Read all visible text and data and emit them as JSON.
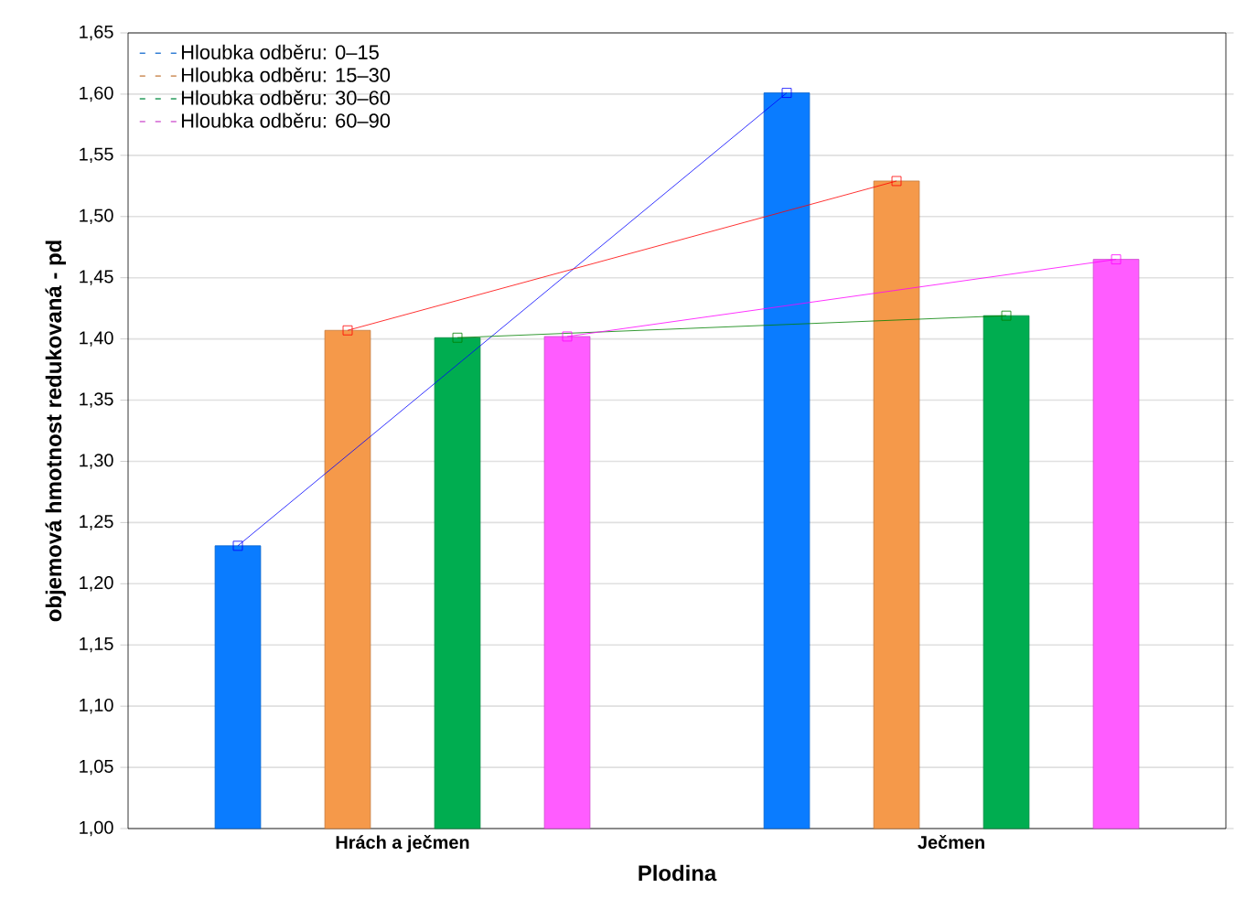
{
  "chart_data": {
    "type": "bar",
    "xlabel": "Plodina",
    "ylabel": "objemová hmotnost redukovaná - pd",
    "categories": [
      "Hrách a ječmen",
      "Ječmen"
    ],
    "series": [
      {
        "name": "Hloubka odběru: 0–15",
        "color": "#0a7cff",
        "values": [
          1.231,
          1.601
        ]
      },
      {
        "name": "Hloubka odběru: 15–30",
        "color": "#f5994a",
        "values": [
          1.407,
          1.529
        ]
      },
      {
        "name": "Hloubka odběru: 30–60",
        "color": "#00ad50",
        "values": [
          1.401,
          1.419
        ]
      },
      {
        "name": "Hloubka odběru: 60–90",
        "color": "#ff5cff",
        "values": [
          1.402,
          1.465
        ]
      },
      {
        "type": "line",
        "marker": "square",
        "color": "#0000ff",
        "values": [
          1.231,
          1.601
        ]
      },
      {
        "type": "line",
        "marker": "square",
        "color": "#ff0000",
        "values": [
          1.407,
          1.529
        ]
      },
      {
        "type": "line",
        "marker": "square",
        "color": "#008000",
        "values": [
          1.401,
          1.419
        ]
      },
      {
        "type": "line",
        "marker": "square",
        "color": "#ff00ff",
        "values": [
          1.402,
          1.465
        ]
      }
    ],
    "ylim": [
      1.0,
      1.65
    ],
    "yticks": [
      {
        "value": 1.0,
        "label": "1,00"
      },
      {
        "value": 1.05,
        "label": "1,05"
      },
      {
        "value": 1.1,
        "label": "1,10"
      },
      {
        "value": 1.15,
        "label": "1,15"
      },
      {
        "value": 1.2,
        "label": "1,20"
      },
      {
        "value": 1.25,
        "label": "1,25"
      },
      {
        "value": 1.3,
        "label": "1,30"
      },
      {
        "value": 1.35,
        "label": "1,35"
      },
      {
        "value": 1.4,
        "label": "1,40"
      },
      {
        "value": 1.45,
        "label": "1,45"
      },
      {
        "value": 1.5,
        "label": "1,50"
      },
      {
        "value": 1.55,
        "label": "1,55"
      },
      {
        "value": 1.6,
        "label": "1,60"
      },
      {
        "value": 1.65,
        "label": "1,65"
      }
    ],
    "grid": "y",
    "legend": "top left"
  }
}
